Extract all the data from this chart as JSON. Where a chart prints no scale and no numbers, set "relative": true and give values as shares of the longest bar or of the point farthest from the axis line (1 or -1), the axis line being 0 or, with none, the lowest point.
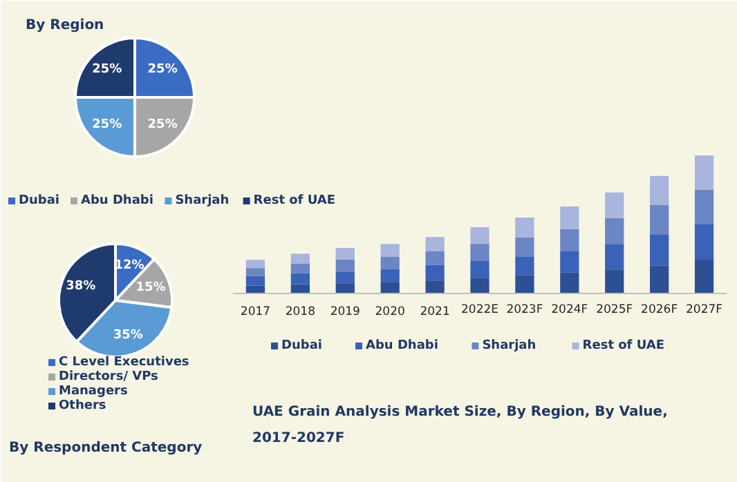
{
  "chart_data": [
    {
      "type": "pie",
      "title": "By Region",
      "categories": [
        "Dubai",
        "Abu Dhabi",
        "Sharjah",
        "Rest of UAE"
      ],
      "values": [
        25,
        25,
        25,
        25
      ],
      "value_labels": [
        "25%",
        "25%",
        "25%",
        "25%"
      ],
      "colors": [
        "#3a6cc4",
        "#a6a6a6",
        "#5b9bd5",
        "#1f3b6e"
      ],
      "legend": "bottom"
    },
    {
      "type": "pie",
      "title": "By Respondent Category",
      "categories": [
        "C Level Executives",
        "Directors/ VPs",
        "Managers",
        "Others"
      ],
      "values": [
        12,
        15,
        35,
        38
      ],
      "value_labels": [
        "12%",
        "15%",
        "35%",
        "38%"
      ],
      "colors": [
        "#3a6cc4",
        "#a6a6a6",
        "#5b9bd5",
        "#1f3b6e"
      ],
      "legend": "bottom"
    },
    {
      "type": "bar",
      "title": "UAE Grain Analysis Market Size, By Region, By Value, 2017-2027F",
      "relative": true,
      "stacked": true,
      "legend": "bottom",
      "categories": [
        "2017",
        "2018",
        "2019",
        "2020",
        "2021",
        "2022E",
        "2023F",
        "2024F",
        "2025F",
        "2026F",
        "2027F"
      ],
      "series": [
        {
          "name": "Dubai",
          "color": "#2d4f94",
          "values": [
            0.057,
            0.067,
            0.074,
            0.084,
            0.094,
            0.114,
            0.131,
            0.151,
            0.174,
            0.201,
            0.245
          ]
        },
        {
          "name": "Abu Dhabi",
          "color": "#3a62b8",
          "values": [
            0.07,
            0.081,
            0.081,
            0.094,
            0.114,
            0.121,
            0.134,
            0.154,
            0.181,
            0.228,
            0.255
          ]
        },
        {
          "name": "Sharjah",
          "color": "#6c85c4",
          "values": [
            0.057,
            0.07,
            0.091,
            0.087,
            0.097,
            0.124,
            0.141,
            0.161,
            0.191,
            0.211,
            0.252
          ]
        },
        {
          "name": "Rest of UAE",
          "color": "#a9b5dc",
          "values": [
            0.06,
            0.07,
            0.084,
            0.094,
            0.104,
            0.121,
            0.144,
            0.164,
            0.185,
            0.211,
            0.248
          ]
        }
      ]
    }
  ]
}
